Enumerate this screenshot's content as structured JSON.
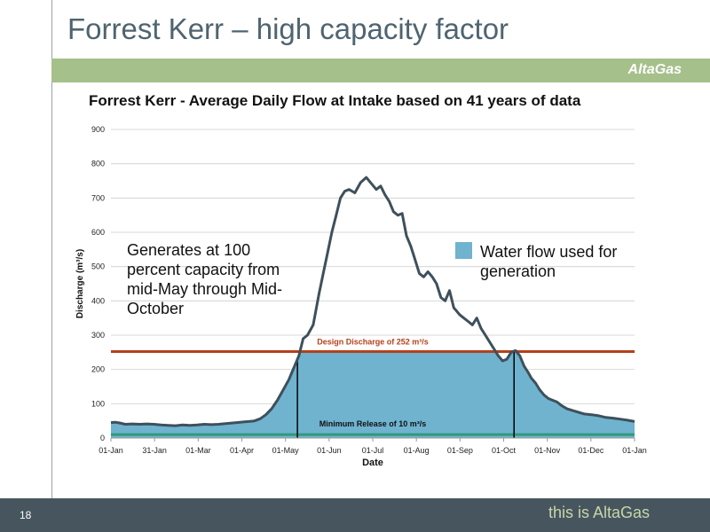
{
  "slide": {
    "title": "Forrest Kerr – high capacity factor",
    "brand": "AltaGas",
    "page_number": "18",
    "tagline": "this is AltaGas"
  },
  "colors": {
    "flow_line": "#3e505b",
    "flow_fill": "#6fb3cf",
    "design_line": "#b5401a",
    "min_release_line": "#2f9a7a",
    "brand_bar": "#a5c08a",
    "footer": "#47565e"
  },
  "chart_data": {
    "type": "area",
    "title": "Forrest Kerr - Average Daily Flow at Intake based on 41 years of data",
    "xlabel": "Date",
    "ylabel": "Discharge (m³/s)",
    "ylim": [
      0,
      900
    ],
    "yticks": [
      "0",
      "100",
      "200",
      "300",
      "400",
      "500",
      "600",
      "700",
      "800",
      "900"
    ],
    "xticks": [
      "01-Jan",
      "31-Jan",
      "01-Mar",
      "01-Apr",
      "01-May",
      "01-Jun",
      "01-Jul",
      "01-Aug",
      "01-Sep",
      "01-Oct",
      "01-Nov",
      "01-Dec",
      "01-Jan"
    ],
    "grid": true,
    "design_discharge": {
      "value": 252,
      "label": "Design Discharge of 252 m³/s"
    },
    "minimum_release": {
      "value": 10,
      "label": "Minimum Release of 10 m³/s"
    },
    "generation_window": {
      "start_day": 130,
      "end_day": 281
    },
    "annotation": "Generates at 100 percent capacity from mid-May through Mid-October",
    "legend": {
      "label": "Water flow used for generation",
      "position": "right"
    },
    "series": [
      {
        "x": [
          0,
          3,
          6,
          10,
          15,
          20,
          25,
          30,
          35,
          40,
          45,
          50,
          55,
          60,
          65,
          70,
          75,
          80,
          85,
          90,
          93,
          96,
          100,
          104,
          108,
          112,
          116,
          120,
          124,
          128,
          131,
          134,
          137,
          141,
          145,
          148,
          151,
          154,
          157,
          160,
          163,
          166,
          170,
          174,
          178,
          182,
          185,
          188,
          191,
          194,
          197,
          200,
          203,
          206,
          209,
          212,
          215,
          218,
          221,
          224,
          227,
          230,
          233,
          236,
          239,
          241,
          243,
          246,
          249,
          252,
          255,
          258,
          261,
          264,
          267,
          270,
          273,
          276,
          279,
          282,
          285,
          288,
          291,
          293,
          296,
          299,
          302,
          305,
          308,
          311,
          314,
          318,
          322,
          326,
          330,
          335,
          340,
          345,
          350,
          355,
          360,
          365
        ],
        "values": [
          45,
          46,
          44,
          40,
          41,
          40,
          41,
          40,
          38,
          37,
          36,
          38,
          37,
          38,
          40,
          39,
          40,
          42,
          44,
          46,
          47,
          48,
          50,
          56,
          68,
          85,
          110,
          140,
          170,
          210,
          240,
          290,
          300,
          330,
          420,
          480,
          540,
          600,
          650,
          700,
          720,
          725,
          715,
          745,
          760,
          740,
          725,
          735,
          710,
          690,
          660,
          650,
          655,
          590,
          560,
          520,
          480,
          470,
          485,
          470,
          450,
          410,
          400,
          430,
          380,
          370,
          360,
          350,
          340,
          330,
          350,
          320,
          300,
          280,
          260,
          240,
          225,
          230,
          250,
          255,
          240,
          210,
          190,
          175,
          160,
          140,
          125,
          115,
          110,
          105,
          95,
          85,
          80,
          75,
          70,
          68,
          65,
          60,
          58,
          55,
          52,
          48
        ]
      }
    ]
  }
}
